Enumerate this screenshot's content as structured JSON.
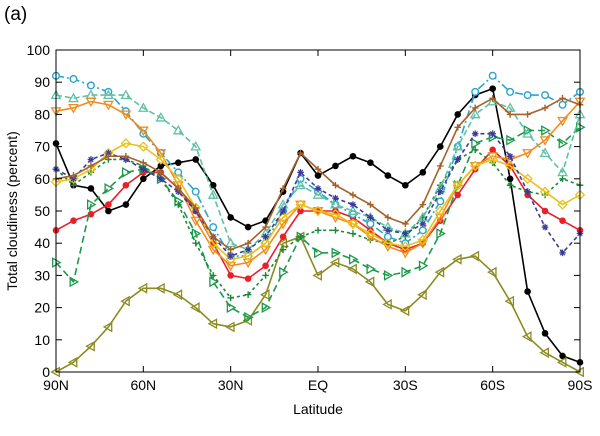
{
  "chart_data": {
    "type": "line",
    "panel_label": "(a)",
    "xlabel": "Latitude",
    "ylabel": "Total cloudiness (percent)",
    "xlim": [
      90,
      -90
    ],
    "ylim": [
      0,
      100
    ],
    "x_ticks": [
      {
        "value": 90,
        "label": "90N"
      },
      {
        "value": 60,
        "label": "60N"
      },
      {
        "value": 30,
        "label": "30N"
      },
      {
        "value": 0,
        "label": "EQ"
      },
      {
        "value": -30,
        "label": "30S"
      },
      {
        "value": -60,
        "label": "60S"
      },
      {
        "value": -90,
        "label": "90S"
      }
    ],
    "y_ticks": [
      0,
      10,
      20,
      30,
      40,
      50,
      60,
      70,
      80,
      90,
      100
    ],
    "x": [
      90,
      84,
      78,
      72,
      66,
      60,
      54,
      48,
      42,
      36,
      30,
      24,
      18,
      12,
      6,
      0,
      -6,
      -12,
      -18,
      -24,
      -30,
      -36,
      -42,
      -48,
      -54,
      -60,
      -66,
      -72,
      -78,
      -84,
      -90
    ],
    "series": [
      {
        "name": "black",
        "color": "#000000",
        "marker": "dot",
        "values": [
          71,
          58,
          57,
          50,
          52,
          60,
          64,
          65,
          66,
          58,
          48,
          45,
          47,
          56,
          68,
          61,
          64,
          67,
          65,
          61,
          58,
          62,
          70,
          80,
          86,
          88,
          60,
          25,
          12,
          5,
          3
        ]
      },
      {
        "name": "red",
        "color": "#e8202a",
        "marker": "dot",
        "values": [
          44,
          47,
          49,
          52,
          58,
          62,
          62,
          57,
          50,
          40,
          30,
          29,
          33,
          42,
          50,
          50,
          50,
          48,
          44,
          40,
          38,
          40,
          47,
          55,
          63,
          69,
          64,
          55,
          50,
          47,
          44
        ]
      },
      {
        "name": "olive",
        "color": "#8b8b21",
        "marker": "triangle-left",
        "values": [
          0,
          3,
          8,
          14,
          22,
          26,
          26,
          24,
          20,
          15,
          14,
          16,
          24,
          40,
          42,
          30,
          34,
          32,
          28,
          21,
          19,
          24,
          31,
          35,
          36,
          31,
          22,
          11,
          6,
          3,
          0
        ]
      },
      {
        "name": "green",
        "color": "#1a9a4a",
        "marker": "triangle-right",
        "values": [
          34,
          28,
          52,
          57,
          62,
          63,
          60,
          53,
          43,
          28,
          20,
          17,
          20,
          31,
          42,
          37,
          37,
          35,
          32,
          30,
          31,
          33,
          43,
          58,
          71,
          73,
          72,
          75,
          75,
          71,
          76
        ]
      },
      {
        "name": "dkgreen-cross",
        "color": "#1a8a3a",
        "marker": "plus",
        "values": [
          63,
          58,
          62,
          66,
          66,
          64,
          60,
          52,
          40,
          30,
          23,
          24,
          30,
          38,
          42,
          44,
          44,
          43,
          41,
          40,
          42,
          48,
          58,
          66,
          69,
          65,
          58,
          56,
          55,
          60,
          58
        ]
      },
      {
        "name": "cyan",
        "color": "#29a4cf",
        "marker": "circle",
        "values": [
          92,
          91,
          89,
          87,
          81,
          74,
          68,
          62,
          56,
          45,
          36,
          36,
          40,
          50,
          60,
          56,
          52,
          49,
          46,
          42,
          40,
          44,
          53,
          70,
          87,
          92,
          87,
          86,
          86,
          83,
          87
        ]
      },
      {
        "name": "teal",
        "color": "#5fc1a6",
        "marker": "triangle-up",
        "values": [
          86,
          85,
          86,
          86,
          86,
          82,
          79,
          75,
          70,
          55,
          40,
          38,
          43,
          52,
          58,
          55,
          52,
          50,
          48,
          45,
          43,
          48,
          57,
          70,
          80,
          84,
          82,
          74,
          68,
          62,
          80
        ]
      },
      {
        "name": "orange",
        "color": "#f08c1e",
        "marker": "triangle-down",
        "values": [
          81,
          82,
          84,
          83,
          80,
          75,
          68,
          58,
          47,
          38,
          33,
          34,
          38,
          46,
          52,
          50,
          48,
          46,
          42,
          39,
          37,
          40,
          48,
          58,
          64,
          67,
          66,
          68,
          72,
          78,
          84
        ]
      },
      {
        "name": "yellow-diamond",
        "color": "#e9c21d",
        "marker": "diamond",
        "values": [
          59,
          60,
          63,
          68,
          71,
          70,
          66,
          60,
          51,
          40,
          35,
          36,
          40,
          48,
          52,
          50,
          49,
          46,
          43,
          40,
          39,
          41,
          50,
          58,
          64,
          66,
          64,
          60,
          56,
          52,
          55
        ]
      },
      {
        "name": "navy-star",
        "color": "#3a3a9a",
        "marker": "asterisk",
        "values": [
          63,
          60,
          66,
          68,
          66,
          63,
          60,
          56,
          50,
          42,
          36,
          38,
          42,
          50,
          62,
          57,
          54,
          52,
          48,
          44,
          43,
          46,
          56,
          66,
          74,
          74,
          67,
          56,
          45,
          37,
          43
        ]
      },
      {
        "name": "brown",
        "color": "#a6602a",
        "marker": "plus",
        "values": [
          60,
          61,
          64,
          67,
          67,
          65,
          62,
          57,
          51,
          42,
          38,
          40,
          45,
          57,
          68,
          63,
          58,
          55,
          52,
          48,
          46,
          52,
          64,
          76,
          82,
          85,
          80,
          80,
          82,
          85,
          83
        ]
      }
    ]
  }
}
